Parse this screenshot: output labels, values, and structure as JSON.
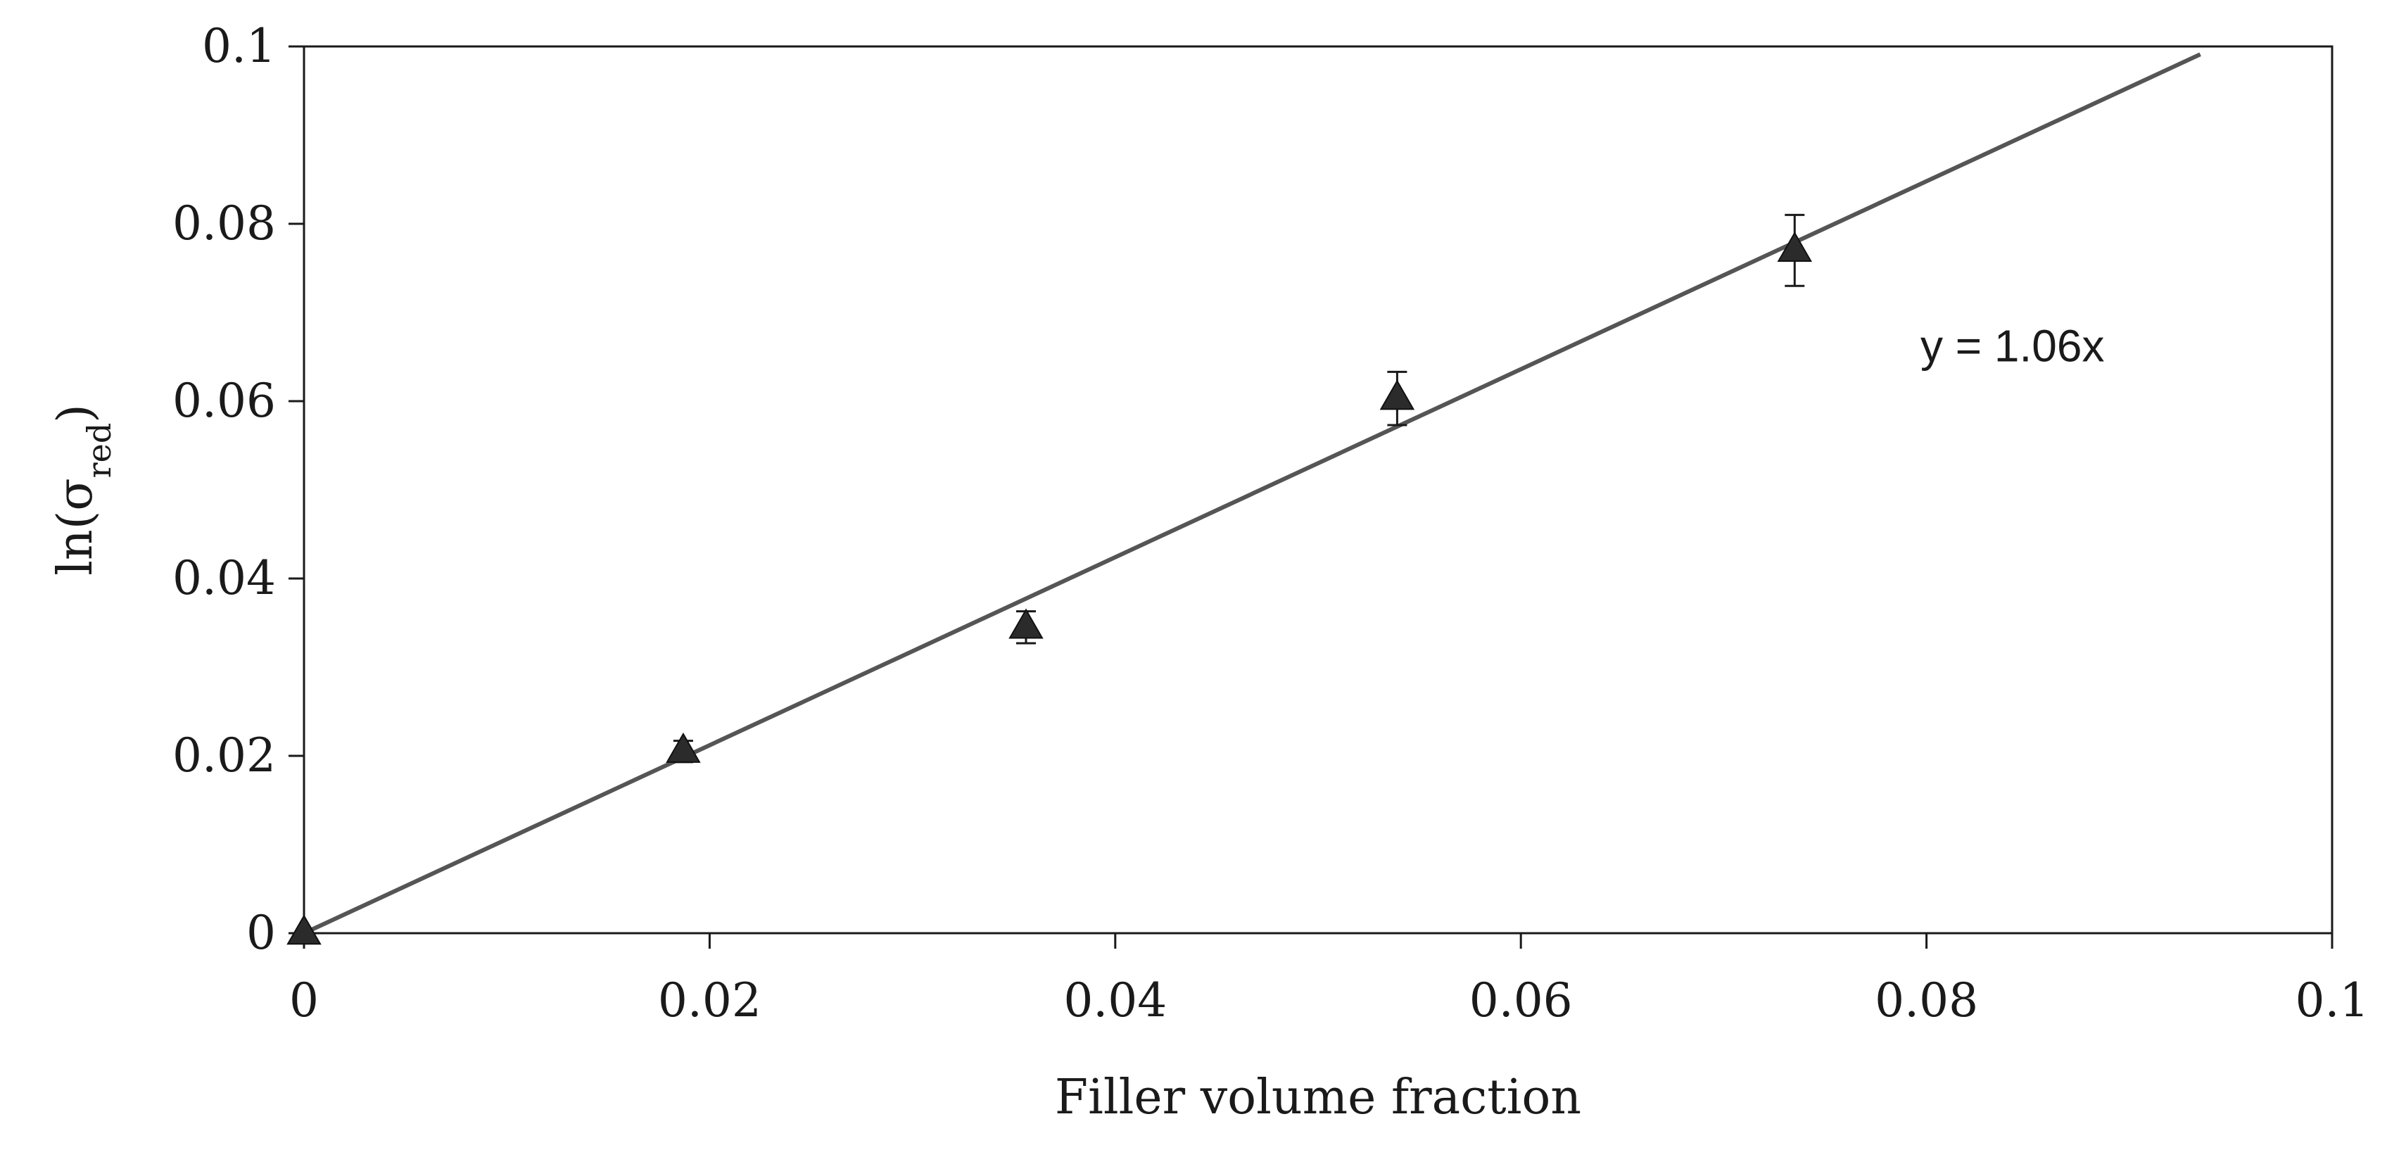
{
  "chart_data": {
    "type": "scatter",
    "xlabel": "Filler volume fraction",
    "ylabel": {
      "base": "ln(σ",
      "subscript": "red",
      "close": ")"
    },
    "xlim": [
      0,
      0.1
    ],
    "ylim": [
      0,
      0.1
    ],
    "x_ticks": [
      0,
      0.02,
      0.04,
      0.06,
      0.08,
      0.1
    ],
    "y_ticks": [
      0,
      0.02,
      0.04,
      0.06,
      0.08,
      0.1
    ],
    "x_tick_labels": [
      "0",
      "0.02",
      "0.04",
      "0.06",
      "0.08",
      "0.1"
    ],
    "y_tick_labels": [
      "0",
      "0.02",
      "0.04",
      "0.06",
      "0.08",
      "0.1"
    ],
    "grid": false,
    "legend": "none",
    "series": [
      {
        "marker": "triangle",
        "color": "#2b2b2b",
        "x": [
          0,
          0.0187,
          0.0356,
          0.0539,
          0.0735
        ],
        "y": [
          0,
          0.0205,
          0.0345,
          0.0603,
          0.077
        ],
        "error": [
          0,
          0.0012,
          0.0018,
          0.003,
          0.004
        ]
      }
    ],
    "trendline": {
      "slope": 1.06,
      "x_range": [
        0,
        0.0935
      ],
      "color": "#555555"
    },
    "annotations": [
      {
        "text": "y = 1.06x",
        "x": 0.0797,
        "y": 0.0645
      }
    ]
  }
}
